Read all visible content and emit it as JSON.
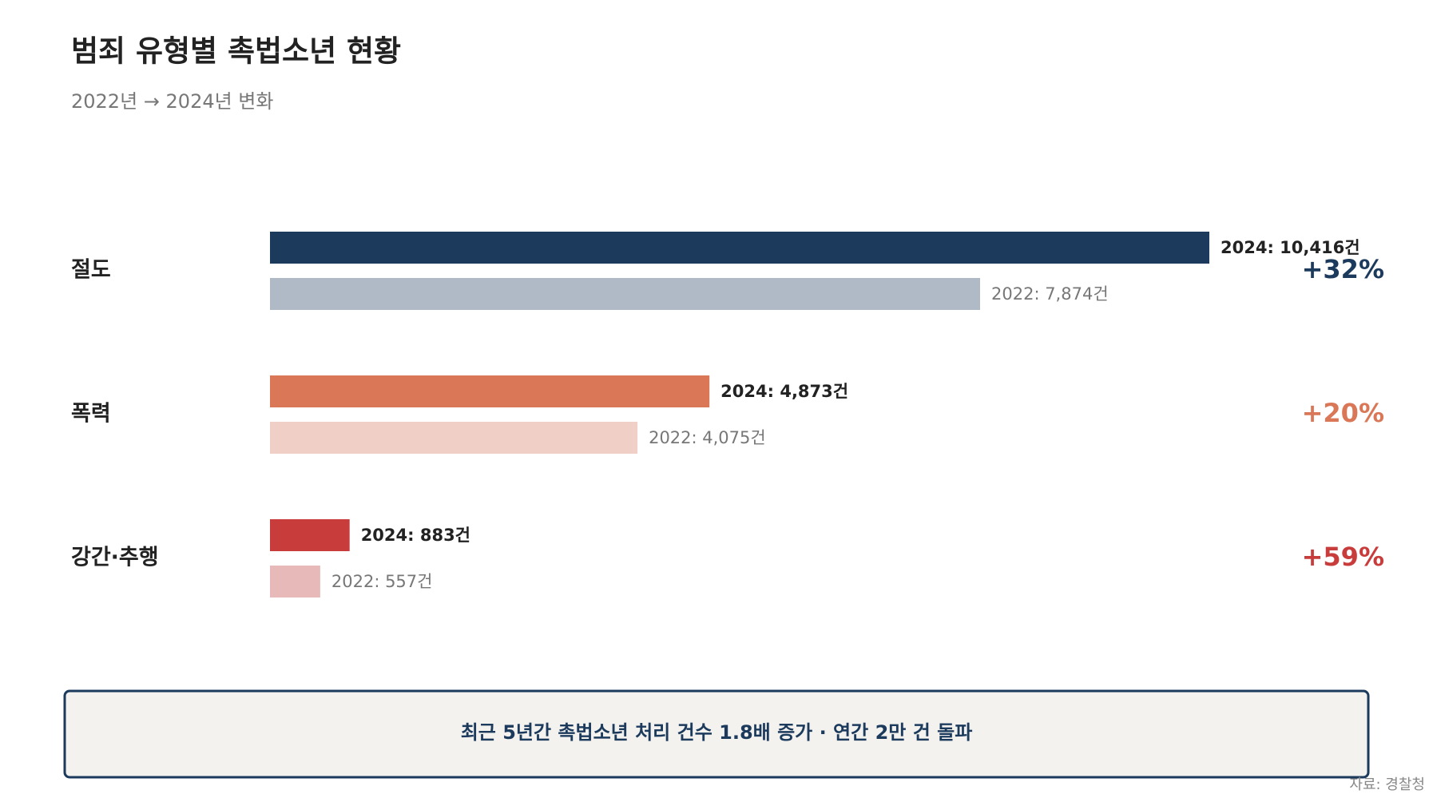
{
  "chart_data": {
    "type": "grouped-hbar",
    "title": "범죄 유형별 촉법소년 현황",
    "subtitle": "2022년 → 2024년 변화",
    "categories": [
      "절도",
      "폭력",
      "강간·추행"
    ],
    "series": [
      {
        "colors": [
          "#1b3a5c",
          "#d97757",
          "#c83c3c"
        ],
        "values": [
          10416,
          4873,
          883
        ],
        "value_labels": [
          "2024: 10,416건",
          "2024: 4,873건",
          "2024: 883건"
        ]
      },
      {
        "colors": [
          "#b0bac7",
          "#f0d0c6",
          "#e8b9b9"
        ],
        "values": [
          7874,
          4075,
          557
        ],
        "value_labels": [
          "2022: 7,874건",
          "2022: 4,075건",
          "2022: 557건"
        ]
      }
    ],
    "change_labels": [
      "+32%",
      "+20%",
      "+59%"
    ],
    "note": "최근 5년간 촉법소년 처리 건수 1.8배 증가 · 연간 2만 건 돌파",
    "source": "자료: 경찰청"
  }
}
